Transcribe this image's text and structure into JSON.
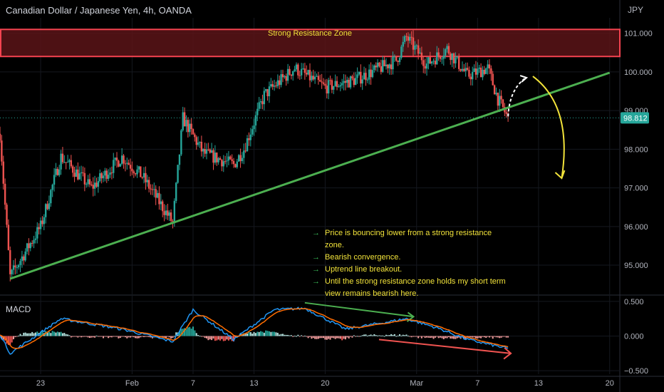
{
  "header": {
    "title": "Canadian Dollar / Japanese Yen, 4h, OANDA",
    "currency": "JPY"
  },
  "macd": {
    "label": "MACD"
  },
  "annotations": {
    "zone_label": "Strong Resistance Zone",
    "notes": [
      "Price is bouncing lower from a strong resistance zone.",
      "Bearish convergence.",
      "Uptrend line breakout.",
      "Until the strong resistance zone holds my short term view remains bearish here."
    ],
    "note_arrow": "→"
  },
  "colors": {
    "up": "#26a69a",
    "down": "#ef5350",
    "trendline": "#4caf50",
    "zone_border": "#f44350",
    "zone_fill": "#5a1418",
    "annotation": "#f2e33a",
    "price_tag": "#26a69a",
    "macd_line": "#2196f3",
    "signal_line": "#ff6d00"
  },
  "chart_data": [
    {
      "type": "candlestick",
      "title": "Canadian Dollar / Japanese Yen, 4h, OANDA",
      "y_axis_unit": "JPY",
      "ylim": [
        94.3,
        101.4
      ],
      "y_ticks": [
        "101.000",
        "100.000",
        "99.000",
        "98.000",
        "97.000",
        "96.000",
        "95.000"
      ],
      "x_ticks": [
        "23",
        "Feb",
        "7",
        "13",
        "20",
        "Mar",
        "7",
        "13",
        "20"
      ],
      "last_price": "98.812",
      "price_path_keypoints": [
        {
          "x": "Jan 19",
          "close": 98.4
        },
        {
          "x": "Jan 20",
          "close": 94.7
        },
        {
          "x": "Jan 23",
          "close": 96.0
        },
        {
          "x": "Jan 25",
          "close": 97.8
        },
        {
          "x": "Jan 28",
          "close": 97.0
        },
        {
          "x": "Jan 31",
          "close": 97.8
        },
        {
          "x": "Feb 2",
          "close": 97.3
        },
        {
          "x": "Feb 5",
          "close": 96.1
        },
        {
          "x": "Feb 6",
          "close": 98.8
        },
        {
          "x": "Feb 8",
          "close": 97.9
        },
        {
          "x": "Feb 11",
          "close": 97.6
        },
        {
          "x": "Feb 12",
          "close": 98.0
        },
        {
          "x": "Feb 14",
          "close": 99.4
        },
        {
          "x": "Feb 17",
          "close": 100.1
        },
        {
          "x": "Feb 20",
          "close": 99.6
        },
        {
          "x": "Feb 23",
          "close": 99.8
        },
        {
          "x": "Feb 27",
          "close": 100.3
        },
        {
          "x": "Feb 28",
          "close": 100.9
        },
        {
          "x": "Mar 2",
          "close": 100.2
        },
        {
          "x": "Mar 4",
          "close": 100.6
        },
        {
          "x": "Mar 6",
          "close": 99.9
        },
        {
          "x": "Mar 8",
          "close": 100.1
        },
        {
          "x": "Mar 9",
          "close": 99.3
        },
        {
          "x": "Mar 10",
          "close": 98.8
        }
      ],
      "resistance_zone": [
        100.4,
        101.1
      ],
      "trendline": [
        {
          "x": "Jan 20",
          "y": 94.65
        },
        {
          "x": "Mar 20",
          "y": 99.98
        }
      ]
    },
    {
      "type": "macd",
      "name": "MACD",
      "ylim": [
        -0.55,
        0.55
      ],
      "y_ticks": [
        "0.500",
        "0.000",
        "−0.500"
      ],
      "keypoints": [
        {
          "x": "Jan 19",
          "macd": 0.02
        },
        {
          "x": "Jan 20",
          "macd": -0.25
        },
        {
          "x": "Jan 25",
          "macd": 0.25
        },
        {
          "x": "Jan 31",
          "macd": 0.1
        },
        {
          "x": "Feb 5",
          "macd": -0.08
        },
        {
          "x": "Feb 7",
          "macd": 0.38
        },
        {
          "x": "Feb 11",
          "macd": -0.05
        },
        {
          "x": "Feb 15",
          "macd": 0.38
        },
        {
          "x": "Feb 18",
          "macd": 0.4
        },
        {
          "x": "Feb 22",
          "macd": 0.1
        },
        {
          "x": "Feb 28",
          "macd": 0.25
        },
        {
          "x": "Mar 3",
          "macd": 0.12
        },
        {
          "x": "Mar 6",
          "macd": -0.05
        },
        {
          "x": "Mar 10",
          "macd": -0.18
        }
      ]
    }
  ]
}
